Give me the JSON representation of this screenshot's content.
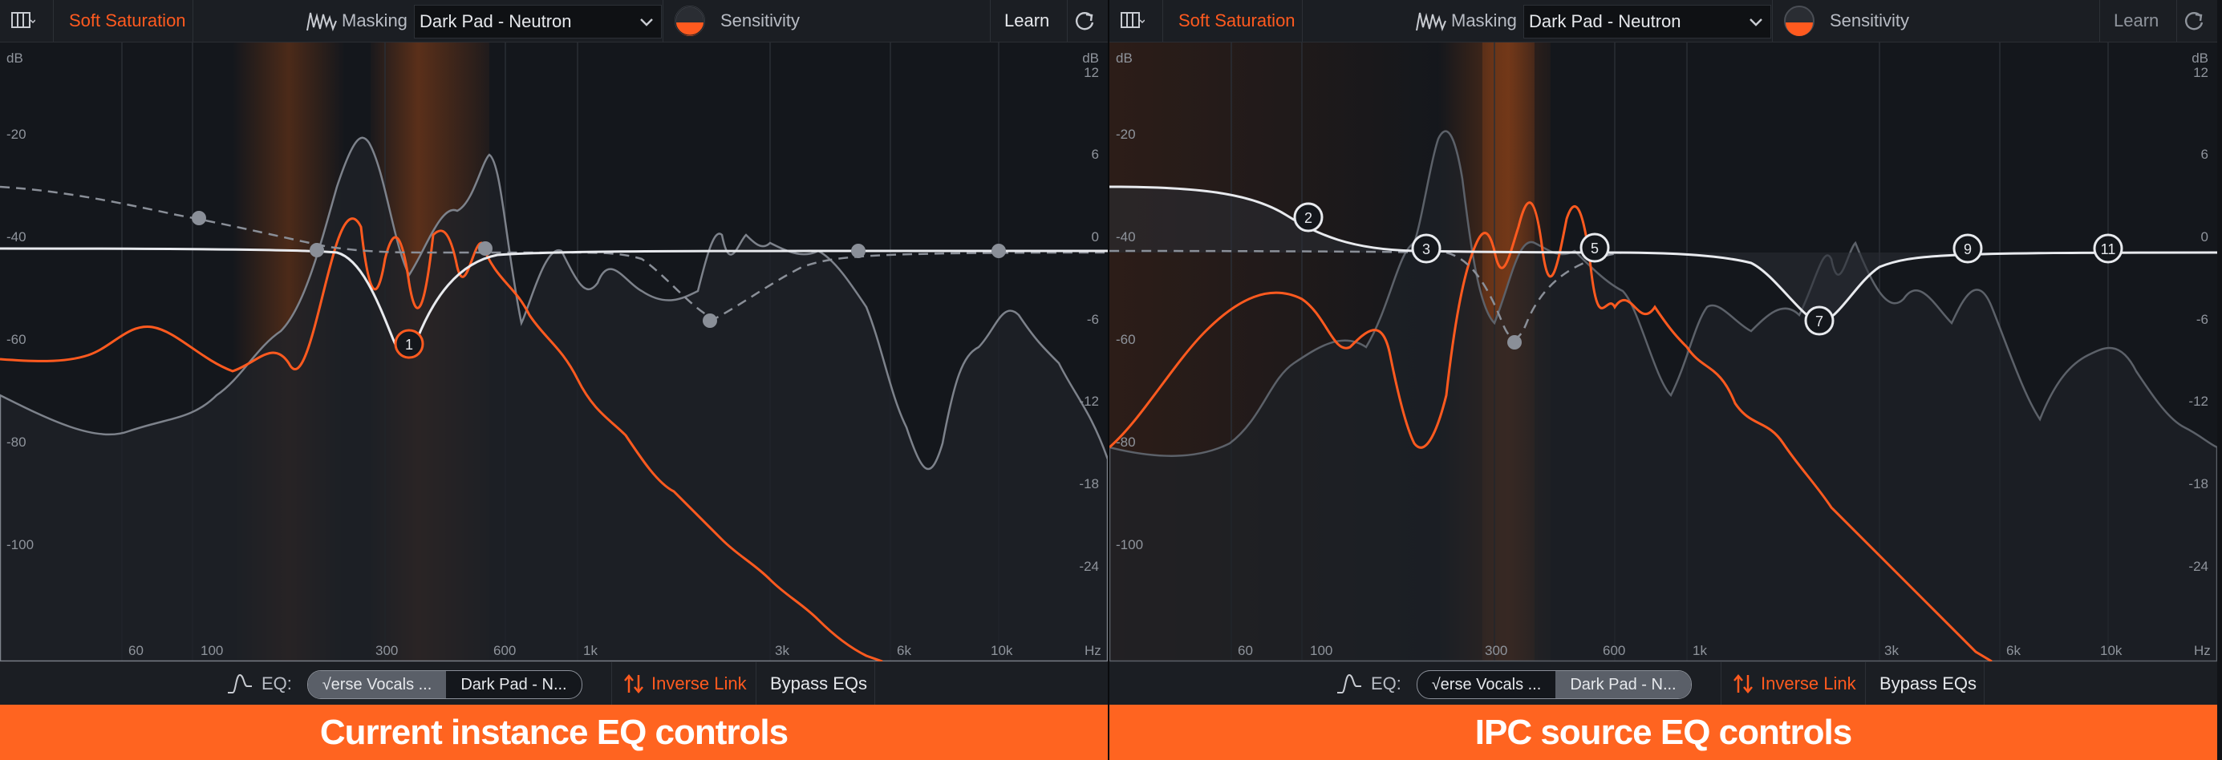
{
  "panels": [
    {
      "id": "left",
      "topbar": {
        "mode_label": "Soft Saturation",
        "masking_label": "Masking",
        "masking_source": "Dark Pad - Neutron",
        "sensitivity_label": "Sensitivity",
        "learn_label": "Learn"
      },
      "axis": {
        "left_unit": "dB",
        "right_unit": "dB",
        "freq_unit": "Hz",
        "left_ticks": [
          "-20",
          "-40",
          "-60",
          "-80",
          "-100"
        ],
        "right_ticks": [
          "12",
          "6",
          "0",
          "-6",
          "-12",
          "-18",
          "-24"
        ],
        "freq_ticks": [
          "60",
          "100",
          "300",
          "600",
          "1k",
          "3k",
          "6k",
          "10k"
        ]
      },
      "nodes": [
        "1"
      ],
      "bottombar": {
        "eq_label": "EQ:",
        "eq_option_a": "√erse Vocals ...",
        "eq_option_b": "Dark Pad - N...",
        "selected": "a",
        "inverse_link_label": "Inverse Link",
        "bypass_label": "Bypass EQs"
      },
      "caption": "Current instance EQ controls"
    },
    {
      "id": "right",
      "topbar": {
        "mode_label": "Soft Saturation",
        "masking_label": "Masking",
        "masking_source": "Dark Pad - Neutron",
        "sensitivity_label": "Sensitivity",
        "learn_label": "Learn"
      },
      "axis": {
        "left_unit": "dB",
        "right_unit": "dB",
        "freq_unit": "Hz",
        "left_ticks": [
          "-20",
          "-40",
          "-60",
          "-80",
          "-100"
        ],
        "right_ticks": [
          "12",
          "6",
          "0",
          "-6",
          "-12",
          "-18",
          "-24"
        ],
        "freq_ticks": [
          "60",
          "100",
          "300",
          "600",
          "1k",
          "3k",
          "6k",
          "10k"
        ]
      },
      "nodes": [
        "2",
        "3",
        "5",
        "7",
        "9",
        "11"
      ],
      "bottombar": {
        "eq_label": "EQ:",
        "eq_option_a": "√erse Vocals ...",
        "eq_option_b": "Dark Pad - N...",
        "selected": "b",
        "inverse_link_label": "Inverse Link",
        "bypass_label": "Bypass EQs"
      },
      "caption": "IPC source EQ controls"
    }
  ],
  "colors": {
    "accent": "#ff5a1f",
    "caption_bg": "#ff6420",
    "eq_curve": "#e8eaee",
    "masker_curve": "#7d828b",
    "band_highlight": "#7a3a16"
  }
}
